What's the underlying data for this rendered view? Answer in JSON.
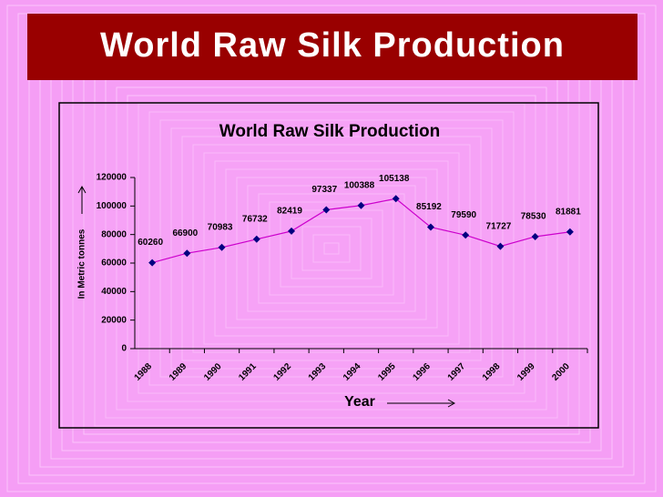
{
  "slide_title": "World Raw Silk Production",
  "chart_data": {
    "type": "line",
    "title": "World Raw Silk Production",
    "categories": [
      "1988",
      "1989",
      "1990",
      "1991",
      "1992",
      "1993",
      "1994",
      "1995",
      "1996",
      "1997",
      "1998",
      "1999",
      "2000"
    ],
    "values": [
      60260,
      66900,
      70983,
      76732,
      82419,
      97337,
      100388,
      105138,
      85192,
      79590,
      71727,
      78530,
      81881
    ],
    "color": "#cc00cc",
    "marker_color": "#000080",
    "ylim": [
      0,
      120000
    ],
    "yticks": [
      0,
      20000,
      40000,
      60000,
      80000,
      100000,
      120000
    ],
    "x_label": "Year",
    "y_label": "In Metric tonnes"
  }
}
